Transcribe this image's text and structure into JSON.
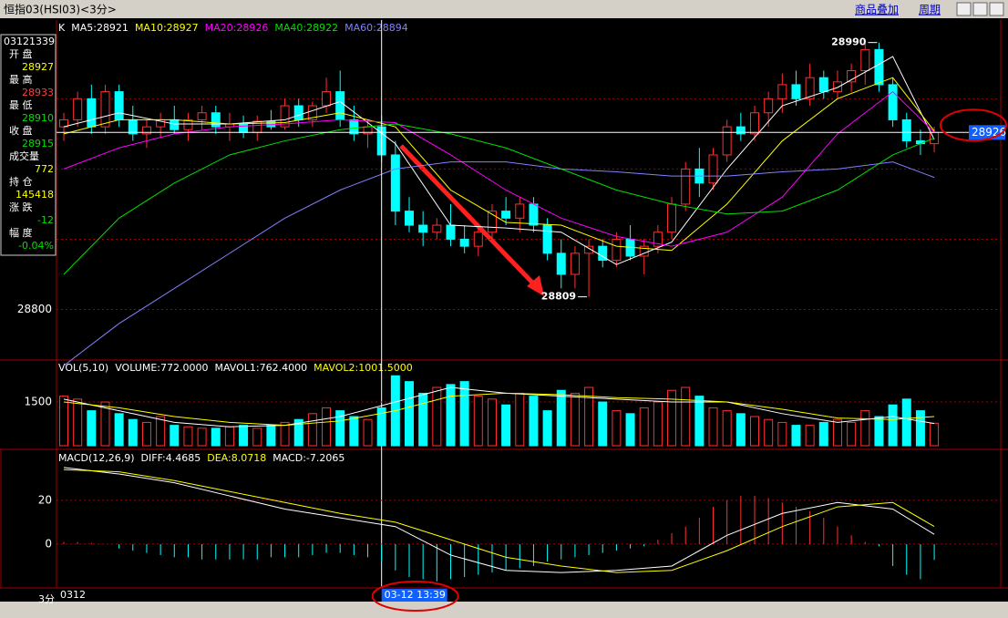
{
  "header": {
    "title": "恒指03(HSI03)<3分>",
    "overlay": "商品叠加",
    "period": "周期"
  },
  "info_panel": {
    "time": "03121339",
    "rows": [
      {
        "label": "开 盘",
        "value": 28927,
        "color": "#ffff00"
      },
      {
        "label": "最 高",
        "value": 28933,
        "color": "#ff4040"
      },
      {
        "label": "最 低",
        "value": 28910,
        "color": "#00e000"
      },
      {
        "label": "收 盘",
        "value": 28915,
        "color": "#00e000"
      },
      {
        "label": "成交量",
        "value": 772,
        "color": "#ffff00"
      },
      {
        "label": "持 仓",
        "value": 145418,
        "color": "#ffff00"
      },
      {
        "label": "涨 跌",
        "value": -12,
        "color": "#00e000"
      },
      {
        "label": "幅 度",
        "value": "-0.04%",
        "color": "#00e000"
      }
    ]
  },
  "price_panel": {
    "type": "candlestick",
    "ylim": [
      28764,
      29006
    ],
    "yticks": [
      28800
    ],
    "gridlines": [
      28850,
      28900,
      28950
    ],
    "legend": [
      {
        "text": "K",
        "color": "#ffffff"
      },
      {
        "text": "MA5:28921",
        "color": "#ffffff"
      },
      {
        "text": "MA10:28927",
        "color": "#ffff00"
      },
      {
        "text": "MA20:28926",
        "color": "#ff00ff"
      },
      {
        "text": "MA40:28922",
        "color": "#00e000"
      },
      {
        "text": "MA60:28894",
        "color": "#8080ff"
      }
    ],
    "up_color": "#ff3030",
    "down_color": "#00ffff",
    "candles": [
      [
        28930,
        28940,
        28920,
        28935
      ],
      [
        28935,
        28955,
        28930,
        28950
      ],
      [
        28950,
        28960,
        28925,
        28930
      ],
      [
        28930,
        28960,
        28925,
        28955
      ],
      [
        28955,
        28960,
        28930,
        28935
      ],
      [
        28935,
        28945,
        28920,
        28925
      ],
      [
        28925,
        28935,
        28915,
        28930
      ],
      [
        28930,
        28940,
        28922,
        28935
      ],
      [
        28935,
        28945,
        28925,
        28928
      ],
      [
        28928,
        28940,
        28920,
        28935
      ],
      [
        28935,
        28945,
        28928,
        28940
      ],
      [
        28940,
        28945,
        28925,
        28930
      ],
      [
        28930,
        28940,
        28920,
        28932
      ],
      [
        28932,
        28938,
        28922,
        28926
      ],
      [
        28926,
        28938,
        28920,
        28934
      ],
      [
        28934,
        28942,
        28928,
        28930
      ],
      [
        28930,
        28950,
        28928,
        28945
      ],
      [
        28945,
        28950,
        28930,
        28935
      ],
      [
        28935,
        28948,
        28930,
        28945
      ],
      [
        28945,
        28965,
        28940,
        28955
      ],
      [
        28955,
        28970,
        28930,
        28935
      ],
      [
        28935,
        28945,
        28920,
        28925
      ],
      [
        28925,
        28935,
        28915,
        28930
      ],
      [
        28930,
        28938,
        28905,
        28910
      ],
      [
        28910,
        28920,
        28860,
        28870
      ],
      [
        28870,
        28880,
        28855,
        28860
      ],
      [
        28860,
        28870,
        28845,
        28855
      ],
      [
        28855,
        28865,
        28850,
        28860
      ],
      [
        28860,
        28875,
        28845,
        28850
      ],
      [
        28850,
        28860,
        28840,
        28845
      ],
      [
        28845,
        28860,
        28838,
        28855
      ],
      [
        28855,
        28875,
        28850,
        28870
      ],
      [
        28870,
        28880,
        28860,
        28865
      ],
      [
        28865,
        28880,
        28855,
        28875
      ],
      [
        28875,
        28880,
        28855,
        28860
      ],
      [
        28860,
        28865,
        28835,
        28840
      ],
      [
        28840,
        28850,
        28815,
        28825
      ],
      [
        28825,
        28845,
        28815,
        28840
      ],
      [
        28840,
        28850,
        28809,
        28845
      ],
      [
        28845,
        28850,
        28830,
        28835
      ],
      [
        28835,
        28855,
        28830,
        28850
      ],
      [
        28850,
        28860,
        28835,
        28838
      ],
      [
        28838,
        28850,
        28825,
        28845
      ],
      [
        28845,
        28860,
        28840,
        28855
      ],
      [
        28855,
        28880,
        28850,
        28875
      ],
      [
        28875,
        28905,
        28870,
        28900
      ],
      [
        28900,
        28915,
        28880,
        28890
      ],
      [
        28890,
        28915,
        28885,
        28910
      ],
      [
        28910,
        28935,
        28905,
        28930
      ],
      [
        28930,
        28940,
        28920,
        28925
      ],
      [
        28925,
        28945,
        28920,
        28940
      ],
      [
        28940,
        28955,
        28930,
        28950
      ],
      [
        28950,
        28968,
        28940,
        28960
      ],
      [
        28960,
        28970,
        28945,
        28950
      ],
      [
        28950,
        28975,
        28945,
        28965
      ],
      [
        28965,
        28970,
        28950,
        28955
      ],
      [
        28955,
        28970,
        28950,
        28962
      ],
      [
        28962,
        28975,
        28955,
        28970
      ],
      [
        28970,
        28990,
        28960,
        28985
      ],
      [
        28985,
        28990,
        28955,
        28960
      ],
      [
        28960,
        28965,
        28930,
        28935
      ],
      [
        28935,
        28940,
        28915,
        28920
      ],
      [
        28920,
        28928,
        28910,
        28918
      ],
      [
        28918,
        28930,
        28912,
        28926
      ]
    ],
    "line_x": [
      0,
      4,
      8,
      12,
      16,
      20,
      24,
      28,
      32,
      36,
      40,
      44,
      48,
      52,
      56,
      60,
      63
    ],
    "lines": [
      {
        "name": "MA5",
        "color": "#ffffff",
        "values": [
          28930,
          28940,
          28932,
          28932,
          28935,
          28948,
          28918,
          28860,
          28858,
          28855,
          28832,
          28848,
          28900,
          28945,
          28958,
          28980,
          28921
        ]
      },
      {
        "name": "MA10",
        "color": "#ffff00",
        "values": [
          28925,
          28935,
          28935,
          28932,
          28933,
          28940,
          28930,
          28885,
          28862,
          28860,
          28845,
          28842,
          28875,
          28920,
          28950,
          28965,
          28927
        ]
      },
      {
        "name": "MA20",
        "color": "#ff00ff",
        "values": [
          28900,
          28915,
          28925,
          28930,
          28932,
          28935,
          28933,
          28910,
          28885,
          28865,
          28852,
          28845,
          28855,
          28880,
          28925,
          28955,
          28926
        ]
      },
      {
        "name": "MA40",
        "color": "#00e000",
        "values": [
          28825,
          28865,
          28890,
          28910,
          28920,
          28928,
          28932,
          28925,
          28915,
          28900,
          28885,
          28875,
          28868,
          28870,
          28885,
          28910,
          28922
        ]
      },
      {
        "name": "MA60",
        "color": "#8080ff",
        "values": [
          28760,
          28790,
          28815,
          28840,
          28865,
          28885,
          28900,
          28905,
          28905,
          28900,
          28898,
          28895,
          28895,
          28898,
          28900,
          28905,
          28894
        ]
      }
    ],
    "high_marker": {
      "value": 28990,
      "index": 59
    },
    "low_marker": {
      "value": 28809,
      "index": 38
    },
    "crosshair": {
      "index": 23,
      "value": 28926,
      "time": "03-12 13:39"
    }
  },
  "volume_panel": {
    "header": [
      {
        "text": "VOL(5,10)",
        "color": "#ffffff"
      },
      {
        "text": "VOLUME:772.0000",
        "color": "#ffffff"
      },
      {
        "text": "MAVOL1:762.4000",
        "color": "#ffffff"
      },
      {
        "text": "MAVOL2:1001.5000",
        "color": "#ffff00"
      }
    ],
    "ylim": [
      0,
      2470
    ],
    "yticks": [
      1500
    ],
    "values": [
      1700,
      1600,
      1200,
      1500,
      1100,
      900,
      800,
      1000,
      700,
      650,
      600,
      600,
      650,
      700,
      600,
      700,
      800,
      900,
      1100,
      1300,
      1200,
      1000,
      900,
      1300,
      2400,
      2200,
      1800,
      2000,
      2100,
      2200,
      1700,
      1600,
      1400,
      1800,
      1700,
      1200,
      1900,
      1800,
      2000,
      1500,
      1200,
      1100,
      1300,
      1500,
      1900,
      2000,
      1700,
      1300,
      1200,
      1100,
      1000,
      900,
      800,
      700,
      700,
      800,
      900,
      800,
      1200,
      1000,
      1400,
      1600,
      1200,
      772
    ],
    "lines": [
      {
        "name": "MAVOL1",
        "color": "#ffffff",
        "values": [
          1600,
          1200,
          800,
          650,
          700,
          1000,
          1500,
          2000,
          1800,
          1700,
          1600,
          1500,
          1500,
          1100,
          800,
          1000,
          762.4
        ]
      },
      {
        "name": "MAVOL2",
        "color": "#ffff00",
        "values": [
          1500,
          1300,
          1000,
          800,
          700,
          850,
          1200,
          1700,
          1800,
          1750,
          1650,
          1600,
          1500,
          1250,
          950,
          900,
          1001.5
        ]
      }
    ]
  },
  "macd_panel": {
    "header": [
      {
        "text": "MACD(12,26,9)",
        "color": "#ffffff"
      },
      {
        "text": "DIFF:4.4685",
        "color": "#ffffff"
      },
      {
        "text": "DEA:8.0718",
        "color": "#ffff00"
      },
      {
        "text": "MACD:-7.2065",
        "color": "#ffffff"
      }
    ],
    "ylim": [
      -20,
      42
    ],
    "yticks": [
      20,
      0
    ],
    "values": [
      1,
      1,
      0.5,
      0,
      -2,
      -3,
      -4,
      -5,
      -6,
      -6,
      -7,
      -7,
      -7,
      -7,
      -7,
      -6,
      -6,
      -6,
      -5,
      -4,
      -4,
      -5,
      -6,
      -8,
      -12,
      -15,
      -16,
      -17,
      -16,
      -15,
      -14,
      -13,
      -12,
      -11,
      -10,
      -8,
      -7,
      -6,
      -5,
      -4,
      -3,
      -2,
      -1,
      2,
      5,
      8,
      12,
      17,
      20,
      22,
      22,
      21,
      19,
      17,
      15,
      12,
      8,
      4,
      1,
      -1,
      -10,
      -14,
      -16,
      -7.2065
    ],
    "lines": [
      {
        "name": "DIFF",
        "color": "#ffffff",
        "values": [
          35,
          32,
          28,
          22,
          16,
          12,
          8,
          -5,
          -12,
          -13,
          -12,
          -10,
          4,
          14,
          19,
          16,
          4.4685
        ]
      },
      {
        "name": "DEA",
        "color": "#ffff00",
        "values": [
          34,
          33,
          29,
          24,
          19,
          14,
          10,
          2,
          -6,
          -10,
          -13,
          -12,
          -3,
          8,
          17,
          19,
          8.0718
        ]
      }
    ]
  },
  "footer": {
    "period": "3分",
    "date": "0312"
  }
}
